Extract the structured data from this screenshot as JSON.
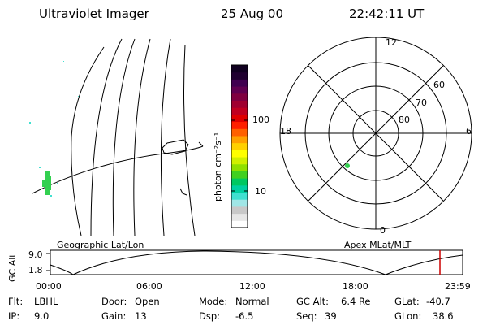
{
  "header": {
    "instrument": "Ultraviolet Imager",
    "date": "25 Aug 00",
    "time": "22:42:11 UT"
  },
  "colorbar": {
    "unit_label": "photon cm⁻²s⁻¹",
    "ticks": [
      "100",
      "10"
    ],
    "colors": [
      "#ffffff",
      "#e6e6e6",
      "#c8c8c8",
      "#a0e6e6",
      "#40e0d0",
      "#00d0a0",
      "#00c860",
      "#40d020",
      "#90e000",
      "#d0f000",
      "#ffff00",
      "#ffd000",
      "#ffa000",
      "#ff6000",
      "#ff2000",
      "#e00000",
      "#c00020",
      "#a00030",
      "#800040",
      "#600050",
      "#400050",
      "#200030",
      "#100020"
    ]
  },
  "polar": {
    "mlt_labels": {
      "top": "12",
      "left": "18",
      "right": "6",
      "bottom": "0"
    },
    "lat_labels": [
      "60",
      "70",
      "80"
    ]
  },
  "timeline": {
    "left_label": "Geographic Lat/Lon",
    "right_label": "Apex MLat/MLT",
    "y_axis_label": "GC Alt",
    "y_ticks": [
      "9.0",
      "1.8"
    ],
    "x_ticks": [
      "00:00",
      "06:00",
      "12:00",
      "18:00",
      "23:59"
    ],
    "current_marker_color": "#cc0000"
  },
  "info": {
    "flt_label": "Flt:",
    "flt_value": "LBHL",
    "door_label": "Door:",
    "door_value": "Open",
    "mode_label": "Mode:",
    "mode_value": "Normal",
    "gcalt_label": "GC Alt:",
    "gcalt_value": "6.4 Re",
    "glat_label": "GLat:",
    "glat_value": "-40.7",
    "ip_label": "IP:",
    "ip_value": "9.0",
    "gain_label": "Gain:",
    "gain_value": "13",
    "dsp_label": "Dsp:",
    "dsp_value": "-6.5",
    "seq_label": "Seq:",
    "seq_value": "39",
    "glon_label": "GLon:",
    "glon_value": "38.6"
  }
}
